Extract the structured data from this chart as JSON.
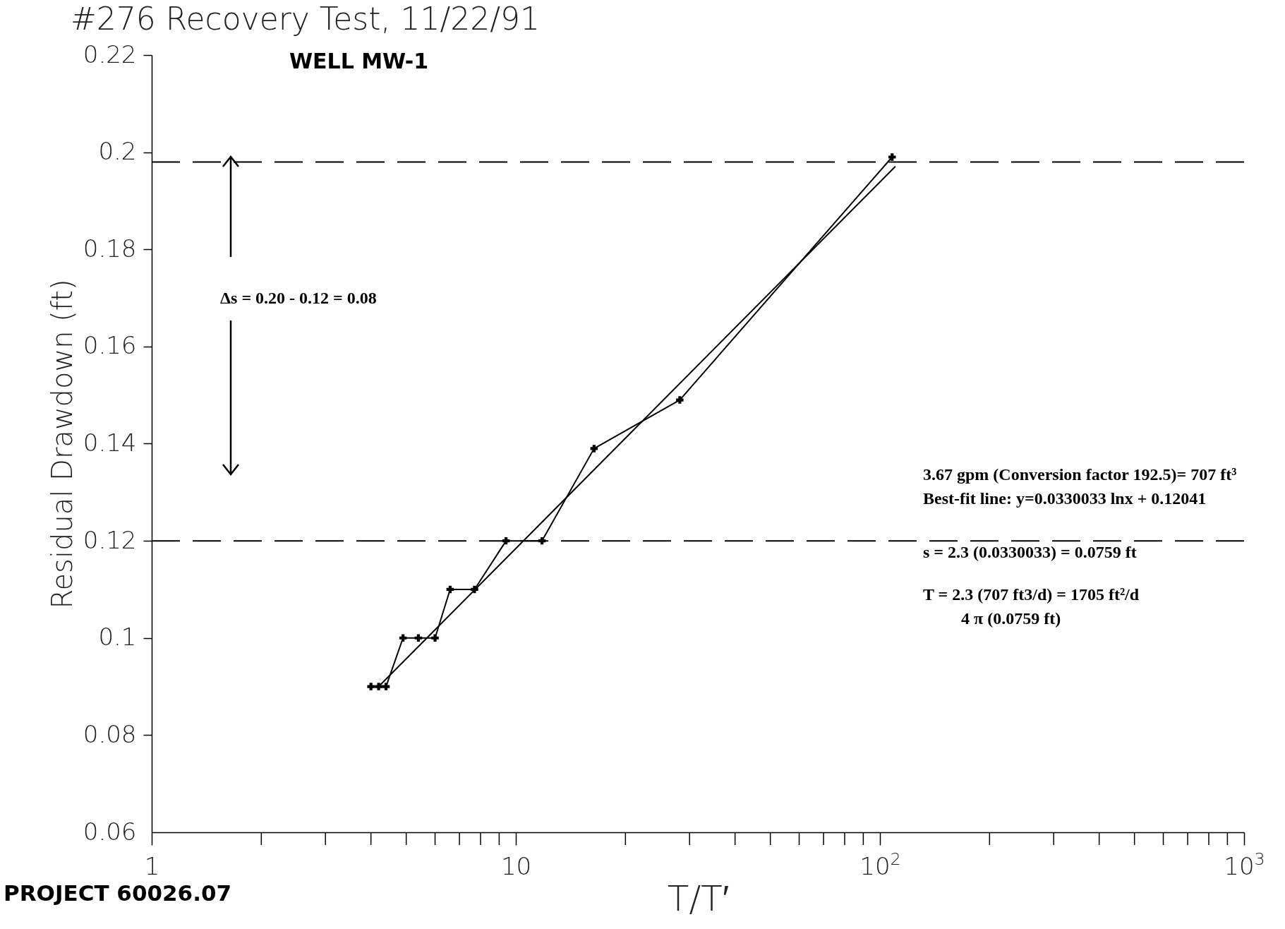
{
  "chart_data": {
    "type": "line",
    "title": "#276 Recovery Test, 11/22/91",
    "subtitle": "WELL MW-1",
    "xlabel": "T/T′",
    "ylabel": "Residual Drawdown (ft)",
    "log": "x",
    "grid": false,
    "marker": "cross",
    "line_style": "solid",
    "xlim": [
      1,
      1000
    ],
    "xticks": [
      1,
      10,
      {
        "value": 100,
        "label": "10$^{2}$"
      },
      {
        "value": 1000,
        "label": "10$^{3}$"
      }
    ],
    "ylim": [
      0.06,
      0.22
    ],
    "yticks": [
      0.06,
      0.08,
      0.1,
      0.12,
      0.14,
      0.16,
      0.18,
      0.2,
      0.22
    ],
    "series": [
      {
        "color": "#000000",
        "x": [
          4.0,
          4.2,
          4.4,
          4.9,
          5.4,
          6.0,
          6.6,
          7.7,
          9.4,
          11.8,
          16.4,
          28.2,
          108
        ],
        "values": [
          0.09,
          0.09,
          0.09,
          0.1,
          0.1,
          0.1,
          0.11,
          0.11,
          0.12,
          0.12,
          0.139,
          0.149,
          0.199
        ]
      },
      {
        "type": "line",
        "marker": "none",
        "color": "#000000",
        "x": [
          4.2,
          110
        ],
        "values": [
          0.09,
          0.197
        ]
      }
    ],
    "ref_lines": [
      {
        "axis": "y",
        "value": 0.198,
        "color": "#000000",
        "line_style": "dashed"
      },
      {
        "axis": "y",
        "value": 0.12,
        "color": "#000000",
        "line_style": "dashed"
      }
    ],
    "annotations": [
      "Δs = 0.20 - 0.12 = 0.08",
      "PROJECT 60026.07",
      "3.67 gpm (Conversion factor 192.5)= 707 ft³",
      "Best-fit line: y=0.0330033 lnx  + 0.12041",
      "s = 2.3 (0.0330033) = 0.0759 ft",
      "T = 2.3 (707 ft3/d) = 1705 ft²/d",
      "4 π (0.0759 ft)"
    ]
  }
}
